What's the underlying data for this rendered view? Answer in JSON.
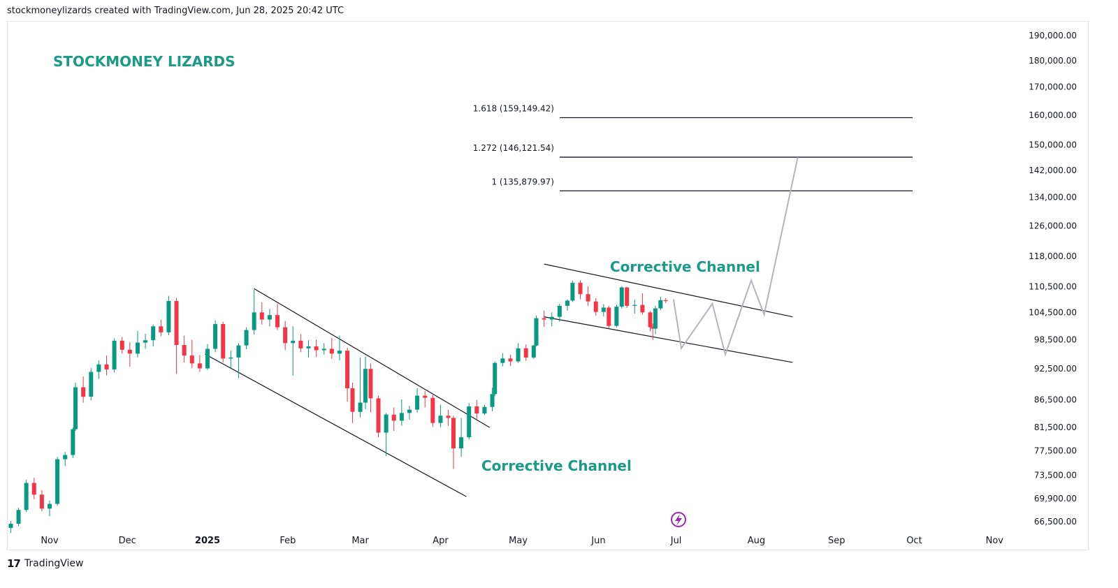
{
  "header": {
    "text": "stockmoneylizards created with TradingView.com, Jun 28, 2025 20:42 UTC"
  },
  "brand": {
    "title": "STOCKMONEY LIZARDS",
    "color": "#1a9b86"
  },
  "footer": {
    "logo_glyph": "17",
    "label": "TradingView",
    "icon": "tradingview-logo-icon"
  },
  "colors": {
    "up": "#089981",
    "down": "#f23645",
    "forecast": "#b2b5be",
    "lines": "#131722",
    "annotation": "#1a9b86",
    "lightning": "#9c27b0"
  },
  "chart_data": {
    "type": "candlestick",
    "scale": "log",
    "yticks": [
      "190,000.00",
      "180,000.00",
      "170,000.00",
      "160,000.00",
      "150,000.00",
      "142,000.00",
      "134,000.00",
      "126,000.00",
      "118,000.00",
      "110,500.00",
      "104,500.00",
      "98,500.00",
      "92,500.00",
      "86,500.00",
      "81,500.00",
      "77,500.00",
      "73,500.00",
      "69,900.00",
      "66,500.00"
    ],
    "xticks": [
      "Nov",
      "Dec",
      "2025",
      "Feb",
      "Mar",
      "Apr",
      "May",
      "Jun",
      "Jul",
      "Aug",
      "Sep",
      "Oct",
      "Nov"
    ],
    "fib_levels": [
      {
        "label": "1.618 (159,149.42)",
        "value": 159149.42
      },
      {
        "label": "1.272 (146,121.54)",
        "value": 146121.54
      },
      {
        "label": "1 (135,879.97)",
        "value": 135879.97
      }
    ],
    "annotations": [
      "Corrective Channel",
      "Corrective Channel"
    ],
    "channel1_upper": [
      [
        "2025-01-19",
        110000
      ],
      [
        "2025-04-20",
        81500
      ]
    ],
    "channel1_lower": [
      [
        "2024-12-31",
        95500
      ],
      [
        "2025-04-11",
        70200
      ]
    ],
    "channel2_upper": [
      [
        "2025-05-11",
        116000
      ],
      [
        "2025-08-15",
        103500
      ]
    ],
    "channel2_lower": [
      [
        "2025-05-11",
        103500
      ],
      [
        "2025-08-15",
        93800
      ]
    ],
    "forecast_path": [
      [
        "2025-06-30",
        107500
      ],
      [
        "2025-07-03",
        96700
      ],
      [
        "2025-07-15",
        106500
      ],
      [
        "2025-07-20",
        95400
      ],
      [
        "2025-07-30",
        112000
      ],
      [
        "2025-08-04",
        104000
      ],
      [
        "2025-08-17",
        146100
      ]
    ],
    "candles": [
      [
        "2024-10-05",
        67800,
        68400,
        66900,
        67600
      ],
      [
        "2024-10-08",
        67600,
        68900,
        66800,
        68200
      ],
      [
        "2024-10-11",
        68200,
        69000,
        66600,
        66800
      ],
      [
        "2024-10-14",
        66800,
        67400,
        65000,
        65600
      ],
      [
        "2024-10-17",
        65600,
        66600,
        64900,
        66200
      ],
      [
        "2024-10-20",
        66200,
        68500,
        65900,
        68200
      ],
      [
        "2024-10-23",
        68200,
        72800,
        67900,
        72300
      ],
      [
        "2024-10-26",
        72300,
        73100,
        69800,
        70500
      ],
      [
        "2024-10-29",
        70500,
        71200,
        68000,
        68400
      ],
      [
        "2024-11-01",
        68400,
        69600,
        67300,
        69100
      ],
      [
        "2024-11-04",
        69100,
        76500,
        68800,
        76100
      ],
      [
        "2024-11-07",
        76100,
        77300,
        75000,
        76800
      ],
      [
        "2024-11-10",
        76800,
        81500,
        76300,
        81200
      ],
      [
        "2024-11-11",
        81200,
        89800,
        80900,
        88900
      ],
      [
        "2024-11-14",
        88900,
        91000,
        86000,
        87100
      ],
      [
        "2024-11-17",
        87100,
        92700,
        86400,
        91900
      ],
      [
        "2024-11-20",
        91900,
        94200,
        90500,
        93400
      ],
      [
        "2024-11-23",
        93400,
        95200,
        91200,
        92400
      ],
      [
        "2024-11-26",
        92400,
        98800,
        91800,
        98300
      ],
      [
        "2024-11-29",
        98300,
        99100,
        95600,
        96400
      ],
      [
        "2024-12-02",
        96400,
        98000,
        92900,
        95600
      ],
      [
        "2024-12-05",
        95600,
        100400,
        94800,
        97900
      ],
      [
        "2024-12-08",
        97900,
        99800,
        96600,
        98400
      ],
      [
        "2024-12-11",
        98400,
        101800,
        97100,
        101400
      ],
      [
        "2024-12-14",
        101400,
        102900,
        99300,
        100100
      ],
      [
        "2024-12-17",
        100100,
        108300,
        99500,
        107100
      ],
      [
        "2024-12-20",
        107100,
        107800,
        91500,
        97400
      ],
      [
        "2024-12-23",
        97400,
        99400,
        93800,
        95200
      ],
      [
        "2024-12-26",
        95200,
        98500,
        92700,
        93600
      ],
      [
        "2024-12-29",
        93600,
        95300,
        91900,
        92600
      ],
      [
        "2025-01-01",
        92600,
        97600,
        92300,
        96600
      ],
      [
        "2025-01-04",
        96600,
        102700,
        95900,
        101900
      ],
      [
        "2025-01-07",
        101900,
        102400,
        93800,
        94600
      ],
      [
        "2025-01-10",
        94600,
        96200,
        92700,
        94800
      ],
      [
        "2025-01-13",
        94800,
        97800,
        90700,
        97300
      ],
      [
        "2025-01-16",
        97300,
        101200,
        96500,
        100600
      ],
      [
        "2025-01-19",
        100600,
        109800,
        99600,
        104500
      ],
      [
        "2025-01-22",
        104500,
        106800,
        101800,
        102900
      ],
      [
        "2025-01-25",
        102900,
        105300,
        101400,
        103900
      ],
      [
        "2025-01-28",
        103900,
        106500,
        100600,
        101200
      ],
      [
        "2025-01-31",
        101200,
        102600,
        96300,
        97800
      ],
      [
        "2025-02-03",
        97800,
        101400,
        91200,
        98300
      ],
      [
        "2025-02-06",
        98300,
        99700,
        95900,
        96700
      ],
      [
        "2025-02-09",
        96700,
        98400,
        94800,
        97100
      ],
      [
        "2025-02-12",
        97100,
        98500,
        94900,
        96300
      ],
      [
        "2025-02-15",
        96300,
        97800,
        95400,
        96600
      ],
      [
        "2025-02-18",
        96600,
        98900,
        94500,
        95600
      ],
      [
        "2025-02-21",
        95600,
        99400,
        94200,
        96200
      ],
      [
        "2025-02-24",
        96200,
        96800,
        86200,
        88700
      ],
      [
        "2025-02-26",
        88700,
        89800,
        82300,
        84300
      ],
      [
        "2025-03-01",
        84300,
        94800,
        83300,
        86000
      ],
      [
        "2025-03-03",
        86000,
        95000,
        84800,
        92500
      ],
      [
        "2025-03-05",
        92500,
        93600,
        84200,
        86800
      ],
      [
        "2025-03-08",
        86800,
        87300,
        79800,
        80600
      ],
      [
        "2025-03-11",
        80600,
        84100,
        76600,
        83800
      ],
      [
        "2025-03-14",
        83800,
        85100,
        80900,
        82700
      ],
      [
        "2025-03-17",
        82700,
        86600,
        81800,
        84100
      ],
      [
        "2025-03-20",
        84100,
        85400,
        82900,
        84700
      ],
      [
        "2025-03-23",
        84700,
        88700,
        84200,
        87300
      ],
      [
        "2025-03-26",
        87300,
        88200,
        85100,
        86900
      ],
      [
        "2025-03-29",
        86900,
        87400,
        81600,
        82300
      ],
      [
        "2025-04-01",
        82300,
        85600,
        81600,
        83600
      ],
      [
        "2025-04-04",
        83600,
        84700,
        81800,
        83200
      ],
      [
        "2025-04-06",
        83200,
        83600,
        74500,
        77900
      ],
      [
        "2025-04-09",
        77900,
        83200,
        76500,
        79800
      ],
      [
        "2025-04-12",
        79800,
        85900,
        79400,
        85300
      ],
      [
        "2025-04-15",
        85300,
        86500,
        83000,
        84000
      ],
      [
        "2025-04-18",
        84000,
        85600,
        83700,
        85200
      ],
      [
        "2025-04-21",
        85200,
        88800,
        84400,
        87600
      ],
      [
        "2025-04-22",
        87600,
        94000,
        87200,
        93700
      ],
      [
        "2025-04-25",
        93700,
        95700,
        93000,
        94600
      ],
      [
        "2025-04-28",
        94600,
        95400,
        93100,
        94000
      ],
      [
        "2025-05-01",
        94000,
        97800,
        93700,
        96700
      ],
      [
        "2025-05-04",
        96700,
        97500,
        94100,
        94800
      ],
      [
        "2025-05-07",
        94800,
        97400,
        94500,
        97300
      ],
      [
        "2025-05-08",
        97300,
        103800,
        97100,
        103200
      ],
      [
        "2025-05-11",
        103200,
        104900,
        101300,
        102900
      ],
      [
        "2025-05-14",
        102900,
        104500,
        101400,
        103500
      ],
      [
        "2025-05-17",
        103500,
        106500,
        102400,
        106000
      ],
      [
        "2025-05-20",
        106000,
        107500,
        104900,
        107200
      ],
      [
        "2025-05-22",
        107200,
        111900,
        106900,
        111400
      ],
      [
        "2025-05-25",
        111400,
        112000,
        107500,
        108700
      ],
      [
        "2025-05-28",
        108700,
        110600,
        106000,
        107000
      ],
      [
        "2025-05-31",
        107000,
        107800,
        103800,
        104600
      ],
      [
        "2025-06-03",
        104600,
        106400,
        103600,
        105600
      ],
      [
        "2025-06-05",
        105600,
        106000,
        101000,
        101500
      ],
      [
        "2025-06-08",
        101500,
        106300,
        101200,
        105800
      ],
      [
        "2025-06-10",
        105800,
        110600,
        105400,
        110300
      ],
      [
        "2025-06-12",
        110300,
        110400,
        105500,
        106000
      ],
      [
        "2025-06-15",
        106000,
        107400,
        104200,
        106200
      ],
      [
        "2025-06-18",
        106200,
        108900,
        104000,
        104500
      ],
      [
        "2025-06-21",
        104500,
        104800,
        100300,
        101200
      ],
      [
        "2025-06-22",
        101200,
        102000,
        98500,
        100900
      ],
      [
        "2025-06-23",
        100900,
        106000,
        99700,
        105400
      ],
      [
        "2025-06-25",
        105400,
        108100,
        105000,
        107300
      ],
      [
        "2025-06-27",
        107300,
        107800,
        106600,
        107100
      ]
    ]
  }
}
